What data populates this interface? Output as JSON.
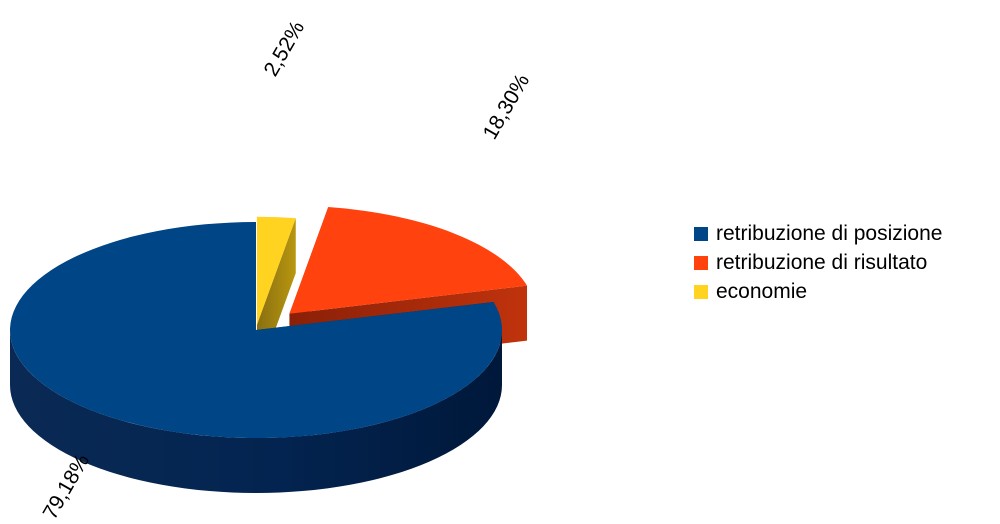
{
  "chart_data": {
    "type": "pie",
    "three_d": true,
    "exploded": true,
    "categories": [
      "retribuzione di posizione",
      "retribuzione di risultato",
      "economie"
    ],
    "values": [
      79.18,
      18.3,
      2.52
    ],
    "data_labels": [
      "79,18%",
      "18,30%",
      "2,52%"
    ],
    "colors": [
      "#004586",
      "#ff420e",
      "#ffd320"
    ],
    "legend_position": "right"
  }
}
